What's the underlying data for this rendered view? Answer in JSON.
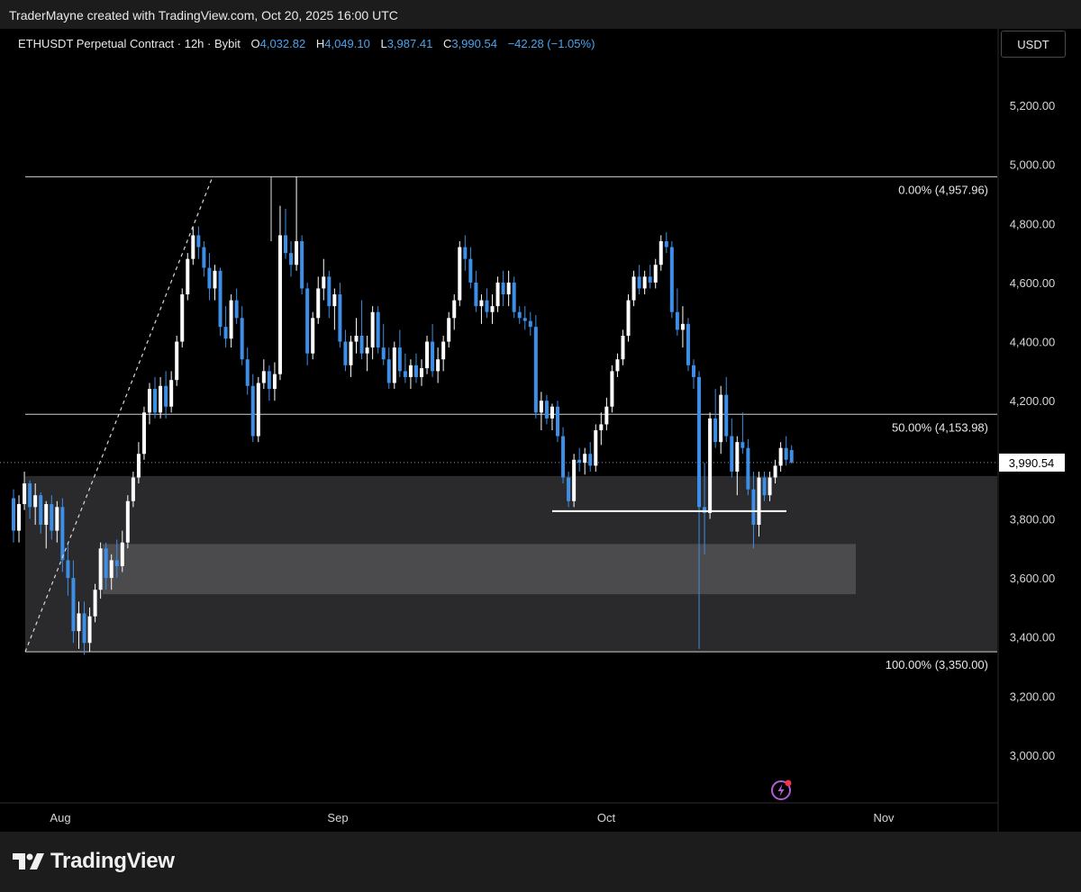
{
  "header": {
    "credit": "TraderMayne created with TradingView.com, Oct 20, 2025 16:00 UTC"
  },
  "legend": {
    "symbol": "ETHUSDT Perpetual Contract · 12h · Bybit",
    "o_label": "O",
    "o_value": "4,032.82",
    "h_label": "H",
    "h_value": "4,049.10",
    "l_label": "L",
    "l_value": "3,987.41",
    "c_label": "C",
    "c_value": "3,990.54",
    "change": "−42.28 (−1.05%)"
  },
  "currency_button": "USDT",
  "brand": "TradingView",
  "icons": {
    "logo": "tradingview-logo-icon",
    "alerts": "lightning-bolt-icon"
  },
  "colors": {
    "up": "#ffffff",
    "down": "#3d8ee6",
    "price_label_bg": "#ffffff",
    "zone_outer": "#2a2a2c",
    "zone_inner": "#4b4b4e"
  },
  "chart_data": {
    "type": "candlestick",
    "symbol": "ETHUSDT",
    "interval": "12h",
    "y_axis_ticks": [
      "5,200.00",
      "5,000.00",
      "4,800.00",
      "4,600.00",
      "4,400.00",
      "4,200.00",
      "3,800.00",
      "3,600.00",
      "3,400.00",
      "3,200.00",
      "3,000.00"
    ],
    "x_axis_ticks": [
      "Aug",
      "Sep",
      "Oct",
      "Nov"
    ],
    "y_range": [
      2850,
      5400
    ],
    "last_price": 3990.54,
    "last_price_label": "3,990.54",
    "fib_levels": [
      {
        "value": 4957.96,
        "label": "0.00% (4,957.96)"
      },
      {
        "value": 4153.98,
        "label": "50.00% (4,153.98)"
      },
      {
        "value": 3350.0,
        "label": "100.00% (3,350.00)"
      }
    ],
    "zones": [
      {
        "name": "demand-zone-outer",
        "from": 3350,
        "to": 3945
      },
      {
        "name": "demand-zone-inner",
        "from": 3545,
        "to": 3715
      }
    ],
    "support_line": 3826,
    "candles": [
      [
        3870,
        3900,
        3720,
        3760
      ],
      [
        3760,
        3880,
        3720,
        3850
      ],
      [
        3850,
        3960,
        3830,
        3920
      ],
      [
        3920,
        3930,
        3800,
        3840
      ],
      [
        3840,
        3920,
        3780,
        3880
      ],
      [
        3880,
        3890,
        3750,
        3780
      ],
      [
        3780,
        3860,
        3700,
        3850
      ],
      [
        3850,
        3880,
        3730,
        3760
      ],
      [
        3760,
        3860,
        3720,
        3840
      ],
      [
        3840,
        3870,
        3620,
        3660
      ],
      [
        3660,
        3720,
        3540,
        3600
      ],
      [
        3600,
        3660,
        3380,
        3420
      ],
      [
        3420,
        3520,
        3360,
        3480
      ],
      [
        3480,
        3520,
        3340,
        3380
      ],
      [
        3380,
        3500,
        3350,
        3470
      ],
      [
        3470,
        3580,
        3450,
        3560
      ],
      [
        3560,
        3720,
        3530,
        3700
      ],
      [
        3700,
        3720,
        3560,
        3600
      ],
      [
        3600,
        3680,
        3560,
        3660
      ],
      [
        3660,
        3730,
        3600,
        3640
      ],
      [
        3640,
        3760,
        3620,
        3720
      ],
      [
        3720,
        3880,
        3700,
        3860
      ],
      [
        3860,
        3960,
        3840,
        3940
      ],
      [
        3940,
        4060,
        3920,
        4020
      ],
      [
        4020,
        4180,
        4000,
        4160
      ],
      [
        4160,
        4260,
        4120,
        4240
      ],
      [
        4240,
        4280,
        4140,
        4160
      ],
      [
        4160,
        4280,
        4140,
        4250
      ],
      [
        4250,
        4300,
        4140,
        4180
      ],
      [
        4180,
        4300,
        4160,
        4270
      ],
      [
        4270,
        4420,
        4250,
        4400
      ],
      [
        4400,
        4580,
        4380,
        4560
      ],
      [
        4560,
        4700,
        4540,
        4680
      ],
      [
        4680,
        4790,
        4660,
        4760
      ],
      [
        4760,
        4790,
        4680,
        4720
      ],
      [
        4720,
        4740,
        4620,
        4650
      ],
      [
        4650,
        4700,
        4540,
        4580
      ],
      [
        4580,
        4660,
        4540,
        4640
      ],
      [
        4640,
        4650,
        4420,
        4450
      ],
      [
        4450,
        4520,
        4380,
        4410
      ],
      [
        4410,
        4560,
        4380,
        4540
      ],
      [
        4540,
        4580,
        4460,
        4480
      ],
      [
        4480,
        4520,
        4320,
        4340
      ],
      [
        4340,
        4380,
        4220,
        4250
      ],
      [
        4250,
        4290,
        4060,
        4080
      ],
      [
        4080,
        4280,
        4060,
        4260
      ],
      [
        4260,
        4340,
        4240,
        4300
      ],
      [
        4300,
        4320,
        4200,
        4240
      ],
      [
        4240,
        4330,
        4200,
        4290
      ],
      [
        4290,
        4860,
        4270,
        4760
      ],
      [
        4760,
        4850,
        4680,
        4700
      ],
      [
        4700,
        4740,
        4620,
        4660
      ],
      [
        4660,
        4958,
        4640,
        4740
      ],
      [
        4740,
        4760,
        4560,
        4580
      ],
      [
        4580,
        4600,
        4320,
        4360
      ],
      [
        4360,
        4500,
        4340,
        4480
      ],
      [
        4480,
        4620,
        4460,
        4580
      ],
      [
        4580,
        4680,
        4540,
        4620
      ],
      [
        4620,
        4640,
        4480,
        4520
      ],
      [
        4520,
        4580,
        4440,
        4560
      ],
      [
        4560,
        4600,
        4380,
        4400
      ],
      [
        4400,
        4440,
        4300,
        4320
      ],
      [
        4320,
        4420,
        4280,
        4400
      ],
      [
        4400,
        4480,
        4360,
        4420
      ],
      [
        4420,
        4540,
        4340,
        4360
      ],
      [
        4360,
        4420,
        4300,
        4380
      ],
      [
        4380,
        4520,
        4340,
        4500
      ],
      [
        4500,
        4520,
        4360,
        4380
      ],
      [
        4380,
        4460,
        4320,
        4340
      ],
      [
        4340,
        4380,
        4240,
        4260
      ],
      [
        4260,
        4400,
        4240,
        4380
      ],
      [
        4380,
        4440,
        4280,
        4300
      ],
      [
        4300,
        4360,
        4260,
        4280
      ],
      [
        4280,
        4340,
        4240,
        4320
      ],
      [
        4320,
        4360,
        4260,
        4280
      ],
      [
        4280,
        4340,
        4250,
        4310
      ],
      [
        4310,
        4420,
        4290,
        4400
      ],
      [
        4400,
        4460,
        4280,
        4300
      ],
      [
        4300,
        4380,
        4260,
        4340
      ],
      [
        4340,
        4420,
        4300,
        4400
      ],
      [
        4400,
        4500,
        4380,
        4480
      ],
      [
        4480,
        4560,
        4440,
        4540
      ],
      [
        4540,
        4740,
        4520,
        4720
      ],
      [
        4720,
        4760,
        4640,
        4680
      ],
      [
        4680,
        4720,
        4580,
        4600
      ],
      [
        4600,
        4640,
        4500,
        4520
      ],
      [
        4520,
        4560,
        4460,
        4540
      ],
      [
        4540,
        4580,
        4480,
        4500
      ],
      [
        4500,
        4560,
        4460,
        4520
      ],
      [
        4520,
        4620,
        4500,
        4600
      ],
      [
        4600,
        4640,
        4520,
        4560
      ],
      [
        4560,
        4640,
        4520,
        4600
      ],
      [
        4600,
        4620,
        4480,
        4500
      ],
      [
        4500,
        4520,
        4460,
        4480
      ],
      [
        4480,
        4520,
        4440,
        4470
      ],
      [
        4470,
        4500,
        4420,
        4450
      ],
      [
        4450,
        4490,
        4140,
        4160
      ],
      [
        4160,
        4230,
        4100,
        4200
      ],
      [
        4200,
        4220,
        4120,
        4140
      ],
      [
        4140,
        4190,
        4100,
        4180
      ],
      [
        4180,
        4200,
        4060,
        4080
      ],
      [
        4080,
        4110,
        3920,
        3940
      ],
      [
        3940,
        3960,
        3840,
        3860
      ],
      [
        3860,
        4020,
        3840,
        4000
      ],
      [
        4000,
        4040,
        3960,
        3990
      ],
      [
        3990,
        4040,
        3950,
        4020
      ],
      [
        4020,
        4060,
        3960,
        3980
      ],
      [
        3980,
        4120,
        3960,
        4100
      ],
      [
        4100,
        4160,
        4050,
        4120
      ],
      [
        4120,
        4210,
        4100,
        4180
      ],
      [
        4180,
        4320,
        4160,
        4300
      ],
      [
        4300,
        4360,
        4280,
        4340
      ],
      [
        4340,
        4440,
        4320,
        4420
      ],
      [
        4420,
        4560,
        4400,
        4540
      ],
      [
        4540,
        4640,
        4520,
        4620
      ],
      [
        4620,
        4660,
        4560,
        4580
      ],
      [
        4580,
        4640,
        4560,
        4620
      ],
      [
        4620,
        4660,
        4580,
        4600
      ],
      [
        4600,
        4680,
        4580,
        4660
      ],
      [
        4660,
        4760,
        4640,
        4740
      ],
      [
        4740,
        4770,
        4700,
        4720
      ],
      [
        4720,
        4740,
        4480,
        4500
      ],
      [
        4500,
        4580,
        4420,
        4440
      ],
      [
        4440,
        4520,
        4380,
        4460
      ],
      [
        4460,
        4480,
        4300,
        4320
      ],
      [
        4320,
        4340,
        4240,
        4280
      ],
      [
        4280,
        4300,
        3360,
        3840
      ],
      [
        3840,
        3990,
        3680,
        3820
      ],
      [
        3820,
        4160,
        3800,
        4140
      ],
      [
        4140,
        4240,
        4040,
        4060
      ],
      [
        4060,
        4250,
        4020,
        4220
      ],
      [
        4220,
        4280,
        4060,
        4080
      ],
      [
        4080,
        4140,
        3940,
        3960
      ],
      [
        3960,
        4080,
        3880,
        4060
      ],
      [
        4060,
        4160,
        4020,
        4040
      ],
      [
        4040,
        4070,
        3880,
        3900
      ],
      [
        3900,
        3960,
        3700,
        3780
      ],
      [
        3780,
        3960,
        3740,
        3940
      ],
      [
        3940,
        3960,
        3860,
        3880
      ],
      [
        3880,
        3960,
        3860,
        3940
      ],
      [
        3940,
        4000,
        3920,
        3980
      ],
      [
        3980,
        4060,
        3960,
        4040
      ],
      [
        4040,
        4080,
        3980,
        4000
      ],
      [
        4033,
        4049,
        3987,
        3991
      ]
    ]
  }
}
